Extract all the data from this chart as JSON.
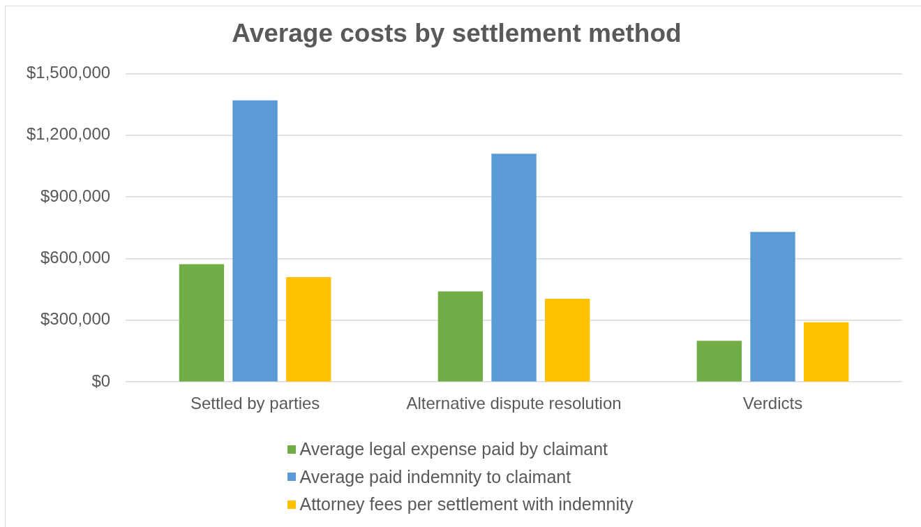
{
  "chart_data": {
    "type": "bar",
    "title": "Average costs by settlement method",
    "categories": [
      "Settled by parties",
      "Alternative dispute resolution",
      "Verdicts"
    ],
    "series": [
      {
        "name": "Average legal expense paid by claimant",
        "color": "#70ad47",
        "values": [
          573000,
          440000,
          200000
        ]
      },
      {
        "name": "Average paid indemnity to claimant",
        "color": "#5b9bd5",
        "values": [
          1370000,
          1110000,
          730000
        ]
      },
      {
        "name": "Attorney fees per settlement with indemnity",
        "color": "#ffc000",
        "values": [
          510000,
          405000,
          290000
        ]
      }
    ],
    "ylim": [
      0,
      1500000
    ],
    "yticks": [
      {
        "value": 0,
        "label": "$0"
      },
      {
        "value": 300000,
        "label": "$300,000"
      },
      {
        "value": 600000,
        "label": "$600,000"
      },
      {
        "value": 900000,
        "label": "$900,000"
      },
      {
        "value": 1200000,
        "label": "$1,200,000"
      },
      {
        "value": 1500000,
        "label": "$1,500,000"
      }
    ],
    "grid": "y",
    "legend": "bottom"
  }
}
